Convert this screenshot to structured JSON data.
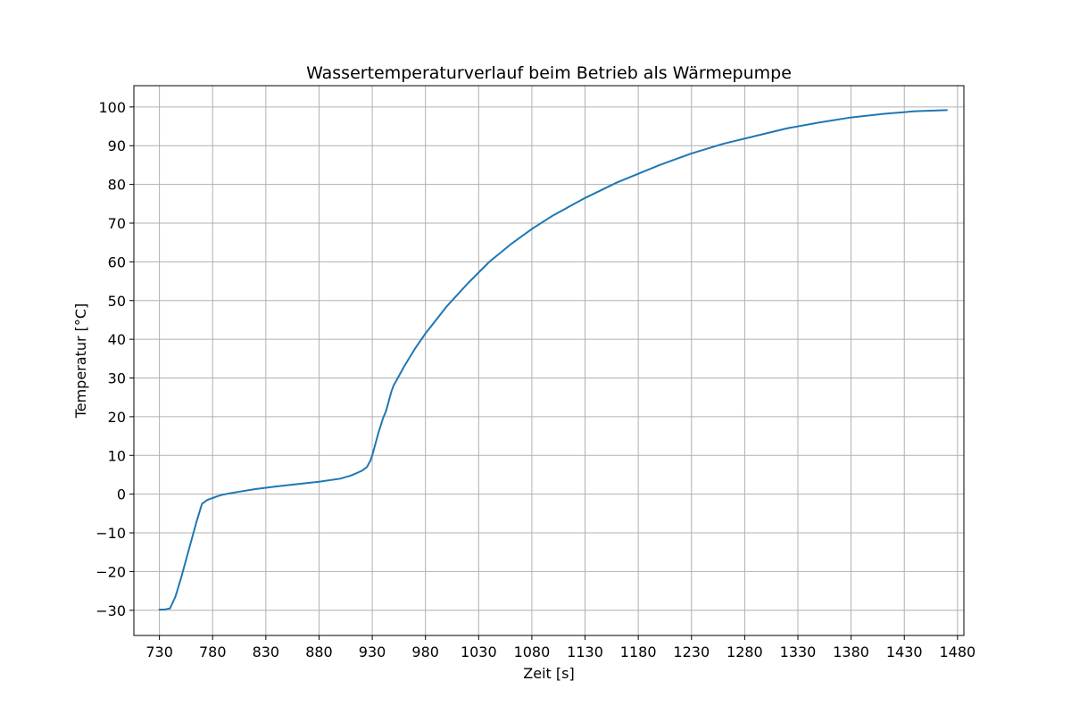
{
  "chart_data": {
    "type": "line",
    "title": "Wassertemperaturverlauf beim Betrieb als Wärmepumpe",
    "xlabel": "Zeit [s]",
    "ylabel": "Temperatur [°C]",
    "xlim": [
      706,
      1486
    ],
    "ylim": [
      -36.5,
      105.5
    ],
    "x_ticks": [
      730,
      780,
      830,
      880,
      930,
      980,
      1030,
      1080,
      1130,
      1180,
      1230,
      1280,
      1330,
      1380,
      1430,
      1480
    ],
    "y_ticks": [
      -30,
      -20,
      -10,
      0,
      10,
      20,
      30,
      40,
      50,
      60,
      70,
      80,
      90,
      100
    ],
    "grid": true,
    "series_color": "#1f77b4",
    "series": [
      {
        "x": [
          730,
          735,
          740,
          745,
          750,
          755,
          760,
          765,
          770,
          775,
          778,
          780,
          785,
          790,
          800,
          820,
          840,
          860,
          880,
          900,
          910,
          915,
          920,
          925,
          928,
          930,
          933,
          936,
          940,
          943,
          946,
          948,
          950,
          955,
          960,
          970,
          980,
          990,
          1000,
          1020,
          1040,
          1060,
          1080,
          1100,
          1130,
          1160,
          1200,
          1230,
          1260,
          1290,
          1320,
          1350,
          1380,
          1410,
          1440,
          1470
        ],
        "y": [
          -29.8,
          -29.8,
          -29.5,
          -26.5,
          -22,
          -17,
          -12,
          -7,
          -2.5,
          -1.5,
          -1.2,
          -1,
          -0.5,
          -0.1,
          0.4,
          1.3,
          2,
          2.6,
          3.2,
          4,
          4.8,
          5.4,
          6,
          7,
          8.5,
          10,
          13,
          16,
          19.5,
          21.5,
          24.5,
          26.5,
          28,
          30.5,
          33,
          37.5,
          41.5,
          45,
          48.5,
          54.5,
          60,
          64.5,
          68.5,
          72,
          76.5,
          80.5,
          85,
          88,
          90.5,
          92.5,
          94.5,
          96,
          97.3,
          98.2,
          98.9,
          99.2
        ]
      }
    ]
  }
}
